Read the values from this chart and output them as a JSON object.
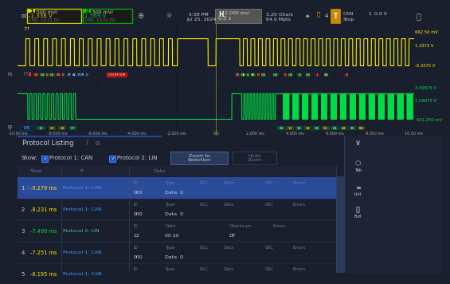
{
  "bg_color": "#1a1f2e",
  "scope_bg": "#000811",
  "panel_bg": "#1a1f2e",
  "row_highlight": "#2a4a9a",
  "row_alt": "#1a1f2e",
  "border_color": "#3a4a6a",
  "text_color": "#c8d0e0",
  "dim_text": "#6a7a9a",
  "yellow_color": "#ffee00",
  "green_color": "#00dd44",
  "top_bar_bg": "#222222",
  "ch1_border": "#cccc00",
  "ch2_border": "#00aa00",
  "ch1_info": {
    "label": "1",
    "val1": "500 mV/",
    "val2": "-1.338 V",
    "sub": "1MΩ  10.01 DC"
  },
  "ch2_info": {
    "label": "2",
    "val1": "500 mV/",
    "val2": "1.569 V",
    "sub": "1MΩ  10.01 DC"
  },
  "time_str": "5:58 PM",
  "date_str": "Jul 25, 2024",
  "horiz_val1": "2.000 ms/",
  "horiz_val2": "0.0 s",
  "acq_val1": "3.20 GSa/s",
  "acq_val2": "64.0 Mpts",
  "trig_ch": "CAN",
  "trig_num": "1",
  "trig_val": "0.0 V",
  "trig_state": "Stop",
  "voltage_labels_ch1_right": [
    "662.50 mV",
    "1.3375 V",
    "-0.3375 V"
  ],
  "voltage_labels_ch2_right": [
    "3.56875 V",
    "1.56875 V",
    "-431.250 mV"
  ],
  "axis_ticks": [
    "-10.00 ms",
    "-8.000 ms",
    "-6.000 ms",
    "-4.000 ms",
    "-2.000 ms",
    "0.0",
    "2.000 ms",
    "4.000 ms",
    "6.000 ms",
    "8.000 ms",
    "10.00 ms"
  ],
  "proto_rows": [
    {
      "num": "1",
      "time": "-9.279 ms",
      "proto": "Protocol 1: CAN",
      "hdr": [
        "ID",
        "Type",
        "DLC",
        "Data",
        "CRC",
        "Errors"
      ],
      "val": [
        "000",
        "Data  0",
        "",
        "",
        "",
        ""
      ],
      "highlight": true
    },
    {
      "num": "2",
      "time": "-8.231 ms",
      "proto": "Protocol 1: CAN",
      "hdr": [
        "ID",
        "Type",
        "DLC",
        "Data",
        "CRC",
        "Errors"
      ],
      "val": [
        "000",
        "Data  0",
        "",
        "",
        "",
        ""
      ],
      "highlight": false
    },
    {
      "num": "3",
      "time": "-7.490 ms",
      "proto": "Protocol 2: LIN",
      "hdr": [
        "ID",
        "Data",
        "Checksum",
        "Errors",
        "",
        ""
      ],
      "val": [
        "12",
        "00 20",
        "DF",
        "",
        "",
        ""
      ],
      "highlight": false
    },
    {
      "num": "4",
      "time": "-7.251 ms",
      "proto": "Protocol 1: CAN",
      "hdr": [
        "ID",
        "Type",
        "DLC",
        "Data",
        "CRC",
        "Errors"
      ],
      "val": [
        "000",
        "Data  0",
        "",
        "",
        "",
        ""
      ],
      "highlight": false
    },
    {
      "num": "5",
      "time": "-6.195 ms",
      "proto": "Protocol 1: CAN",
      "hdr": [
        "ID",
        "Type",
        "DLC",
        "Data",
        "CRC",
        "Errors"
      ],
      "val": [],
      "highlight": false
    }
  ],
  "proto1_label": "Protocol 1: CAN",
  "proto2_label": "Protocol 2: LIN"
}
